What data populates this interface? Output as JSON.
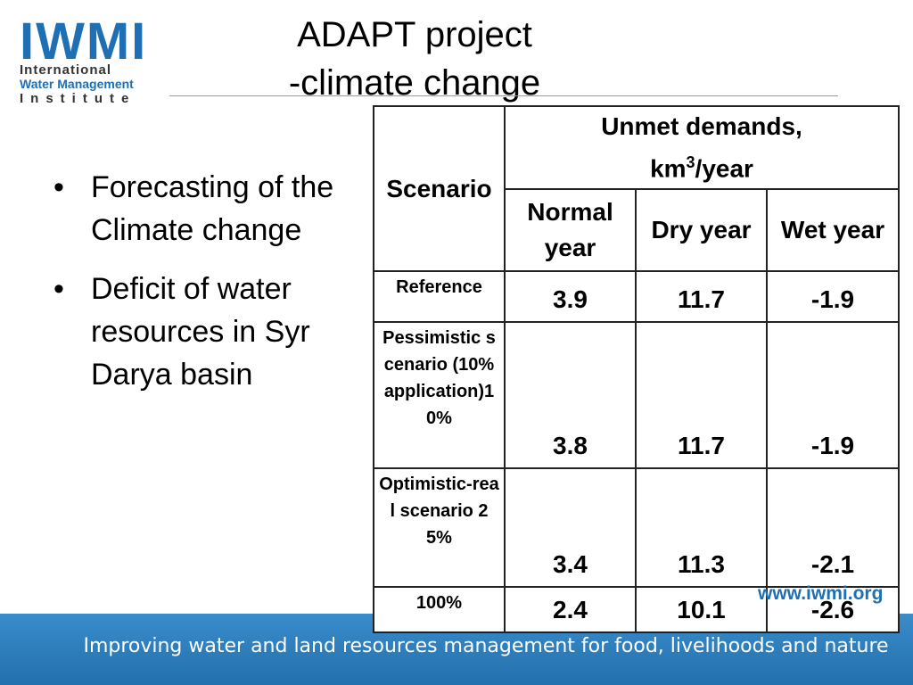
{
  "logo": {
    "name": "IWMI",
    "line1": "International",
    "line2": "Water Management",
    "line3": "Institute"
  },
  "title": {
    "line1": "ADAPT project",
    "line2": "-climate change"
  },
  "bullets": [
    "Forecasting of the Climate change",
    "Deficit of water resources in Syr Darya basin"
  ],
  "table": {
    "header": {
      "scenario": "Scenario",
      "group": "Unmet demands,",
      "unit": "km",
      "unit_sup": "3",
      "unit_rest": "/year",
      "columns": [
        "Normal year",
        "Dry year",
        "Wet year"
      ]
    },
    "rows": [
      [
        "Reference",
        "3.9",
        "11.7",
        "-1.9"
      ],
      [
        "Pessimistic scenario (10% application)10%",
        "3.8",
        "11.7",
        "-1.9"
      ],
      [
        "Optimistic-real scenario 25%",
        "3.4",
        "11.3",
        "-2.1"
      ],
      [
        "100%",
        "2.4",
        "10.1",
        "-2.6"
      ]
    ]
  },
  "footer": {
    "url": "www.iwmi.org",
    "tagline": "Improving water and land resources management for food, livelihoods and nature"
  }
}
